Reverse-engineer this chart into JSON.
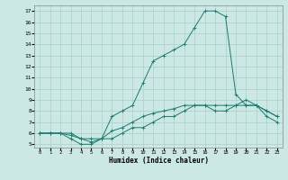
{
  "title": "",
  "xlabel": "Humidex (Indice chaleur)",
  "background_color": "#cce8e5",
  "grid_color": "#aacfcc",
  "line_color": "#1a7a6e",
  "xlim": [
    -0.5,
    23.5
  ],
  "ylim": [
    4.7,
    17.5
  ],
  "xticks": [
    0,
    1,
    2,
    3,
    4,
    5,
    6,
    7,
    8,
    9,
    10,
    11,
    12,
    13,
    14,
    15,
    16,
    17,
    18,
    19,
    20,
    21,
    22,
    23
  ],
  "yticks": [
    5,
    6,
    7,
    8,
    9,
    10,
    11,
    12,
    13,
    14,
    15,
    16,
    17
  ],
  "line1_x": [
    0,
    1,
    2,
    3,
    4,
    5,
    6,
    7,
    8,
    9,
    10,
    11,
    12,
    13,
    14,
    15,
    16,
    17,
    18,
    19,
    20,
    21,
    22,
    23
  ],
  "line1_y": [
    6.0,
    6.0,
    6.0,
    6.0,
    5.5,
    5.2,
    5.5,
    7.5,
    8.0,
    8.5,
    10.5,
    12.5,
    13.0,
    13.5,
    14.0,
    15.5,
    17.0,
    17.0,
    16.5,
    9.5,
    8.5,
    8.5,
    7.5,
    7.0
  ],
  "line2_x": [
    0,
    1,
    2,
    3,
    4,
    5,
    6,
    7,
    8,
    9,
    10,
    11,
    12,
    13,
    14,
    15,
    16,
    17,
    18,
    19,
    20,
    21,
    22,
    23
  ],
  "line2_y": [
    6.0,
    6.0,
    6.0,
    5.5,
    5.0,
    5.0,
    5.5,
    5.5,
    6.0,
    6.5,
    6.5,
    7.0,
    7.5,
    7.5,
    8.0,
    8.5,
    8.5,
    8.0,
    8.0,
    8.5,
    9.0,
    8.5,
    8.0,
    7.5
  ],
  "line3_x": [
    0,
    1,
    2,
    3,
    4,
    5,
    6,
    7,
    8,
    9,
    10,
    11,
    12,
    13,
    14,
    15,
    16,
    17,
    18,
    19,
    20,
    21,
    22,
    23
  ],
  "line3_y": [
    6.0,
    6.0,
    6.0,
    5.8,
    5.5,
    5.5,
    5.5,
    6.2,
    6.5,
    7.0,
    7.5,
    7.8,
    8.0,
    8.2,
    8.5,
    8.5,
    8.5,
    8.5,
    8.5,
    8.5,
    8.5,
    8.5,
    8.0,
    7.5
  ]
}
